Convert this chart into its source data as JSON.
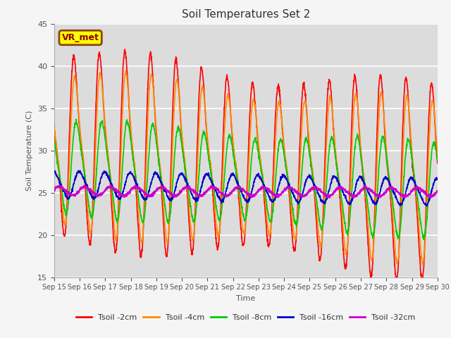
{
  "title": "Soil Temperatures Set 2",
  "xlabel": "Time",
  "ylabel": "Soil Temperature (C)",
  "ylim": [
    15,
    45
  ],
  "xlim": [
    0,
    15
  ],
  "plot_bg": "#dcdcdc",
  "fig_bg": "#f5f5f5",
  "grid_color": "#ffffff",
  "x_tick_labels": [
    "Sep 15",
    "Sep 16",
    "Sep 17",
    "Sep 18",
    "Sep 19",
    "Sep 20",
    "Sep 21",
    "Sep 22",
    "Sep 23",
    "Sep 24",
    "Sep 25",
    "Sep 26",
    "Sep 27",
    "Sep 28",
    "Sep 29",
    "Sep 30"
  ],
  "series": {
    "Tsoil -2cm": {
      "color": "#ff0000",
      "lw": 1.2
    },
    "Tsoil -4cm": {
      "color": "#ff8c00",
      "lw": 1.2
    },
    "Tsoil -8cm": {
      "color": "#00cc00",
      "lw": 1.2
    },
    "Tsoil -16cm": {
      "color": "#0000cc",
      "lw": 1.2
    },
    "Tsoil -32cm": {
      "color": "#cc00cc",
      "lw": 1.5
    }
  },
  "annotation_text": "VR_met",
  "annotation_bbox": {
    "boxstyle": "round,pad=0.3",
    "facecolor": "#ffff00",
    "edgecolor": "#8B4513",
    "linewidth": 2
  },
  "annotation_color": "#8B0000"
}
